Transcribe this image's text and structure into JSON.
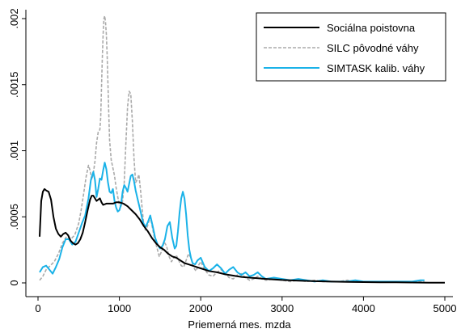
{
  "chart_data": {
    "type": "line",
    "xlabel": "Priemerná mes. mzda",
    "ylabel": "",
    "xlim": [
      0,
      5000
    ],
    "ylim": [
      0,
      0.002
    ],
    "x_ticks": [
      0,
      1000,
      2000,
      3000,
      4000,
      5000
    ],
    "x_tick_labels": [
      "0",
      "1000",
      "2000",
      "3000",
      "4000",
      "5000"
    ],
    "y_ticks": [
      0,
      0.0005,
      0.001,
      0.0015,
      0.002
    ],
    "y_tick_labels": [
      "0",
      ".0005",
      ".001",
      ".0015",
      ".002"
    ],
    "grid": false,
    "legend_position": "top-right",
    "series": [
      {
        "name": "Sociálna poistovna",
        "color": "#000000",
        "style": "solid",
        "x": [
          20,
          40,
          60,
          80,
          100,
          130,
          160,
          190,
          220,
          250,
          280,
          310,
          340,
          370,
          400,
          430,
          460,
          490,
          520,
          550,
          580,
          610,
          640,
          660,
          680,
          700,
          720,
          740,
          760,
          780,
          800,
          840,
          880,
          920,
          960,
          1000,
          1050,
          1100,
          1150,
          1200,
          1250,
          1300,
          1350,
          1400,
          1450,
          1500,
          1550,
          1600,
          1650,
          1700,
          1750,
          1800,
          1850,
          1900,
          1950,
          2000,
          2100,
          2200,
          2300,
          2400,
          2500,
          2600,
          2700,
          2800,
          2900,
          3000,
          3200,
          3400,
          3600,
          3800,
          4000,
          4200,
          4400,
          4600,
          4800,
          5000
        ],
        "y": [
          0.00035,
          0.00062,
          0.00069,
          0.00071,
          0.0007,
          0.00069,
          0.00063,
          0.0005,
          0.00041,
          0.00037,
          0.00035,
          0.00037,
          0.00038,
          0.00036,
          0.00032,
          0.0003,
          0.00029,
          0.0003,
          0.00033,
          0.00038,
          0.00046,
          0.00055,
          0.00063,
          0.00066,
          0.00066,
          0.00064,
          0.00062,
          0.00063,
          0.00064,
          0.00061,
          0.00059,
          0.0006,
          0.0006,
          0.0006,
          0.00061,
          0.00061,
          0.0006,
          0.00058,
          0.00055,
          0.00052,
          0.00048,
          0.00043,
          0.00039,
          0.00034,
          0.0003,
          0.00027,
          0.00025,
          0.00022,
          0.0002,
          0.00019,
          0.00017,
          0.00015,
          0.00014,
          0.00013,
          0.00012,
          0.00011,
          9e-05,
          8e-05,
          6.5e-05,
          5.5e-05,
          4.5e-05,
          4e-05,
          3.5e-05,
          3e-05,
          2.6e-05,
          2.2e-05,
          1.7e-05,
          1.3e-05,
          1e-05,
          8e-06,
          6e-06,
          5e-06,
          4e-06,
          3e-06,
          2e-06,
          1e-06
        ]
      },
      {
        "name": "SILC pôvodné váhy",
        "color": "#aaaaaa",
        "style": "dashed",
        "x": [
          20,
          60,
          100,
          150,
          200,
          250,
          300,
          350,
          400,
          450,
          500,
          530,
          560,
          590,
          620,
          640,
          660,
          680,
          700,
          720,
          740,
          760,
          770,
          780,
          790,
          800,
          810,
          820,
          830,
          840,
          850,
          860,
          870,
          880,
          900,
          920,
          940,
          960,
          980,
          1000,
          1020,
          1040,
          1060,
          1080,
          1100,
          1120,
          1140,
          1160,
          1180,
          1200,
          1220,
          1240,
          1260,
          1280,
          1300,
          1320,
          1340,
          1360,
          1380,
          1400,
          1430,
          1460,
          1490,
          1520,
          1550,
          1580,
          1610,
          1640,
          1670,
          1700,
          1730,
          1760,
          1790,
          1820,
          1850,
          1880,
          1910,
          1940,
          1970,
          2000,
          2050,
          2100,
          2150,
          2200,
          2250,
          2300,
          2350,
          2400,
          2450,
          2500,
          2550,
          2600,
          2650,
          2700,
          2750,
          2800,
          2900,
          3000,
          3100,
          3200,
          3300,
          3400,
          3500,
          3600,
          3700,
          3800,
          3900,
          4000,
          4100,
          4200,
          4300,
          4400,
          4500,
          4600,
          4700,
          4750
        ],
        "y": [
          2e-05,
          5e-05,
          0.0001,
          0.00013,
          0.00016,
          0.00022,
          0.0003,
          0.00035,
          0.00033,
          0.00036,
          0.00045,
          0.00055,
          0.00067,
          0.0008,
          0.00089,
          0.00085,
          0.00078,
          0.00083,
          0.00092,
          0.00106,
          0.00114,
          0.00116,
          0.00125,
          0.00148,
          0.0017,
          0.00188,
          0.002,
          0.00202,
          0.00197,
          0.00188,
          0.00172,
          0.0015,
          0.00128,
          0.00108,
          0.00093,
          0.00087,
          0.00081,
          0.00072,
          0.00065,
          0.00059,
          0.00058,
          0.00062,
          0.00076,
          0.00105,
          0.00133,
          0.00145,
          0.00143,
          0.00122,
          0.00094,
          0.00076,
          0.00078,
          0.00082,
          0.0007,
          0.00056,
          0.00044,
          0.0004,
          0.00042,
          0.00046,
          0.0005,
          0.00044,
          0.00034,
          0.00027,
          0.0002,
          0.00024,
          0.00031,
          0.00028,
          0.0002,
          0.00016,
          0.00019,
          0.00021,
          0.00017,
          0.00013,
          0.00012,
          0.00017,
          0.00022,
          0.00019,
          0.00012,
          9e-05,
          0.00013,
          0.00016,
          0.0001,
          6e-05,
          5e-05,
          8e-05,
          0.0001,
          7e-05,
          4e-05,
          3e-05,
          6e-05,
          7e-05,
          4e-05,
          2e-05,
          3e-05,
          5e-05,
          3e-05,
          2e-05,
          3e-05,
          2e-05,
          1e-05,
          2e-05,
          1e-05,
          2e-05,
          1e-05,
          1e-05,
          1e-05,
          2e-05,
          1e-05,
          1e-05,
          1e-05,
          1e-05,
          1e-05,
          1e-05,
          1e-05,
          1e-05,
          1e-05,
          1e-05
        ]
      },
      {
        "name": "SIMTASK kalib. váhy",
        "color": "#1ab2e8",
        "style": "solid",
        "x": [
          20,
          60,
          100,
          140,
          180,
          220,
          260,
          300,
          340,
          380,
          420,
          460,
          500,
          540,
          580,
          620,
          650,
          680,
          700,
          720,
          740,
          760,
          780,
          800,
          820,
          840,
          860,
          880,
          900,
          920,
          940,
          960,
          980,
          1000,
          1020,
          1040,
          1060,
          1080,
          1100,
          1120,
          1140,
          1160,
          1180,
          1200,
          1230,
          1260,
          1290,
          1320,
          1350,
          1380,
          1410,
          1440,
          1470,
          1500,
          1530,
          1560,
          1590,
          1620,
          1650,
          1680,
          1700,
          1720,
          1740,
          1760,
          1780,
          1800,
          1820,
          1840,
          1860,
          1880,
          1900,
          1930,
          1960,
          2000,
          2050,
          2100,
          2150,
          2200,
          2250,
          2300,
          2350,
          2400,
          2450,
          2500,
          2550,
          2600,
          2650,
          2700,
          2750,
          2800,
          2900,
          3000,
          3100,
          3200,
          3300,
          3400,
          3500,
          3600,
          3700,
          3800,
          3900,
          4000,
          4100,
          4200,
          4300,
          4400,
          4500,
          4600,
          4700,
          4750
        ],
        "y": [
          8e-05,
          0.00012,
          0.00013,
          0.0001,
          7e-05,
          0.00012,
          0.00018,
          0.00027,
          0.00033,
          0.00033,
          0.00029,
          0.00031,
          0.00038,
          0.00045,
          0.00051,
          0.00064,
          0.00078,
          0.00084,
          0.00078,
          0.00065,
          0.00071,
          0.00079,
          0.00078,
          0.00085,
          0.00091,
          0.00086,
          0.00076,
          0.00069,
          0.00068,
          0.00071,
          0.00062,
          0.00057,
          0.00054,
          0.00055,
          0.00059,
          0.00069,
          0.00074,
          0.00072,
          0.00069,
          0.00075,
          0.00081,
          0.00082,
          0.00077,
          0.0007,
          0.00062,
          0.00054,
          0.00046,
          0.00042,
          0.00046,
          0.00051,
          0.00043,
          0.00034,
          0.00029,
          0.00026,
          0.00028,
          0.00033,
          0.00043,
          0.00046,
          0.00034,
          0.00026,
          0.00028,
          0.00039,
          0.00053,
          0.00064,
          0.00069,
          0.00064,
          0.00052,
          0.00036,
          0.00025,
          0.00019,
          0.00015,
          0.00014,
          0.00017,
          0.00019,
          0.00012,
          9e-05,
          0.00011,
          0.00014,
          0.00011,
          7e-05,
          0.0001,
          0.00012,
          8e-05,
          6e-05,
          8e-05,
          5e-05,
          6e-05,
          8e-05,
          5e-05,
          3e-05,
          4e-05,
          3e-05,
          2e-05,
          3e-05,
          2e-05,
          1e-05,
          2e-05,
          1e-05,
          1e-05,
          1e-05,
          2e-05,
          1e-05,
          1e-05,
          1e-05,
          1e-05,
          1e-05,
          1e-05,
          1e-05,
          2e-05,
          2e-05
        ]
      }
    ]
  }
}
